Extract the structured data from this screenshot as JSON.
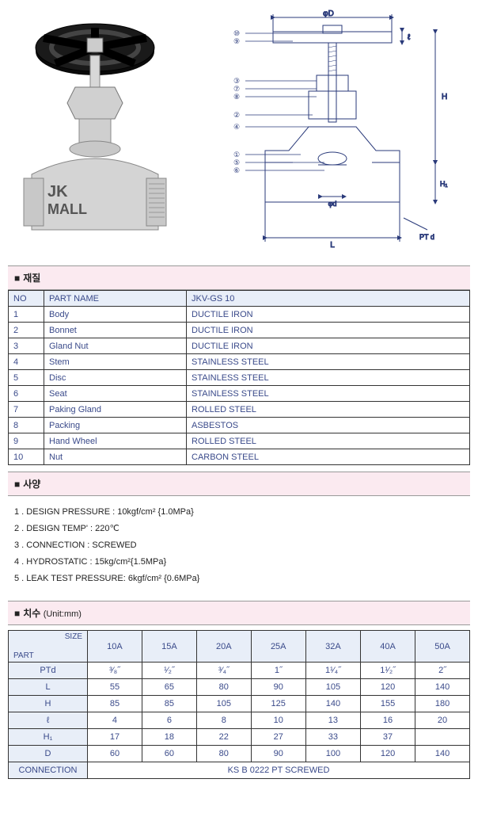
{
  "photo": {
    "brand_line1": "JK",
    "brand_line2": "MALL"
  },
  "diagram": {
    "callouts_left": [
      "⑩",
      "⑨",
      "③",
      "⑦",
      "⑧",
      "②",
      "④",
      "①",
      "⑤",
      "⑥"
    ],
    "dims": {
      "D": "φD",
      "ell": "ℓ",
      "H": "H",
      "H1": "H₁",
      "d": "φd",
      "L": "L",
      "PTd": "PT d"
    }
  },
  "sections": {
    "materials": "재질",
    "specs": "사양",
    "dims": "치수",
    "dims_unit": "(Unit:mm)"
  },
  "materials": {
    "headers": {
      "no": "NO",
      "part": "PART NAME",
      "model": "JKV-GS 10"
    },
    "rows": [
      {
        "no": "1",
        "name": "Body",
        "mat": "DUCTILE IRON"
      },
      {
        "no": "2",
        "name": "Bonnet",
        "mat": "DUCTILE IRON"
      },
      {
        "no": "3",
        "name": "Gland Nut",
        "mat": "DUCTILE IRON"
      },
      {
        "no": "4",
        "name": "Stem",
        "mat": "STAINLESS STEEL"
      },
      {
        "no": "5",
        "name": "Disc",
        "mat": "STAINLESS STEEL"
      },
      {
        "no": "6",
        "name": "Seat",
        "mat": "STAINLESS STEEL"
      },
      {
        "no": "7",
        "name": "Paking Gland",
        "mat": "ROLLED STEEL"
      },
      {
        "no": "8",
        "name": "Packing",
        "mat": "ASBESTOS"
      },
      {
        "no": "9",
        "name": "Hand Wheel",
        "mat": "ROLLED STEEL"
      },
      {
        "no": "10",
        "name": "Nut",
        "mat": "CARBON STEEL"
      }
    ]
  },
  "specs": [
    "1 . DESIGN PRESSURE : 10kgf/cm² {1.0MPa}",
    "2 . DESIGN TEMP' : 220℃",
    "3 . CONNECTION : SCREWED",
    "4 . HYDROSTATIC : 15kg/cm²{1.5MPa}",
    "5 . LEAK TEST PRESSURE: 6kgf/cm² {0.6MPa}"
  ],
  "dims": {
    "size_label": "SIZE",
    "part_label": "PART",
    "sizes": [
      "10A",
      "15A",
      "20A",
      "25A",
      "32A",
      "40A",
      "50A"
    ],
    "rows": [
      {
        "label": "PTd",
        "vals": [
          "³⁄₈˝",
          "¹⁄₂˝",
          "³⁄₄˝",
          "1˝",
          "1¹⁄₄˝",
          "1¹⁄₂˝",
          "2˝"
        ]
      },
      {
        "label": "L",
        "vals": [
          "55",
          "65",
          "80",
          "90",
          "105",
          "120",
          "140"
        ]
      },
      {
        "label": "H",
        "vals": [
          "85",
          "85",
          "105",
          "125",
          "140",
          "155",
          "180"
        ]
      },
      {
        "label": "ℓ",
        "vals": [
          "4",
          "6",
          "8",
          "10",
          "13",
          "16",
          "20"
        ]
      },
      {
        "label": "H₁",
        "vals": [
          "17",
          "18",
          "22",
          "27",
          "33",
          "37",
          ""
        ]
      },
      {
        "label": "D",
        "vals": [
          "60",
          "60",
          "80",
          "90",
          "100",
          "120",
          "140"
        ]
      }
    ],
    "connection_label": "CONNECTION",
    "connection_value": "KS B 0222 PT SCREWED"
  },
  "colors": {
    "header_bg": "#fbeaf0",
    "th_bg": "#e8eef8",
    "text_blue": "#3a4a8a",
    "border": "#333333"
  }
}
